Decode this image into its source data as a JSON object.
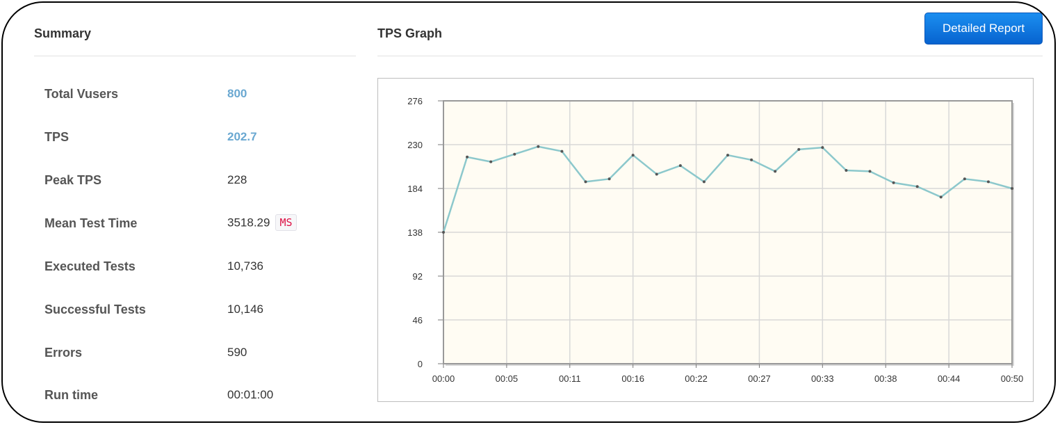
{
  "summary": {
    "title": "Summary",
    "rows": [
      {
        "label": "Total Vusers",
        "value": "800"
      },
      {
        "label": "TPS",
        "value": "202.7"
      },
      {
        "label": "Peak TPS",
        "value": "228"
      },
      {
        "label": "Mean Test Time",
        "value": "3518.29",
        "unit": "MS"
      },
      {
        "label": "Executed Tests",
        "value": "10,736"
      },
      {
        "label": "Successful Tests",
        "value": "10,146"
      },
      {
        "label": "Errors",
        "value": "590"
      },
      {
        "label": "Run time",
        "value": "00:01:00"
      }
    ]
  },
  "graph": {
    "title": "TPS Graph",
    "button_label": "Detailed Report"
  },
  "colors": {
    "accent_value": "#6aa8d1",
    "button": "#0b6fd9",
    "plot_bg": "#fffcf3",
    "line": "#8cc8cc"
  },
  "chart_data": {
    "type": "line",
    "title": "",
    "xlabel": "",
    "ylabel": "",
    "ylim": [
      0,
      276
    ],
    "yticks": [
      "0",
      "46",
      "92",
      "138",
      "184",
      "230",
      "276"
    ],
    "xticks": [
      "00:00",
      "00:05",
      "00:11",
      "00:16",
      "00:22",
      "00:27",
      "00:33",
      "00:38",
      "00:44",
      "00:50"
    ],
    "grid": true,
    "series": [
      {
        "values": [
          138,
          217,
          212,
          220,
          228,
          223,
          191,
          194,
          219,
          199,
          208,
          191,
          219,
          214,
          202,
          225,
          227,
          203,
          202,
          190,
          186,
          175,
          194,
          191,
          184
        ]
      }
    ]
  }
}
